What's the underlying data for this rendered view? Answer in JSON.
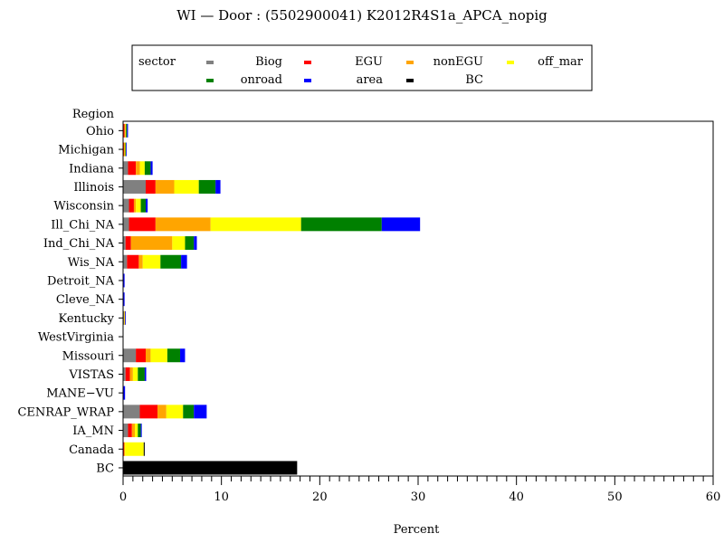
{
  "chart_data": {
    "type": "bar",
    "orientation": "horizontal",
    "stacked": true,
    "title": "WI — Door : (5502900041) K2012R4S1a_APCA_nopig",
    "xlabel": "Percent",
    "ylabel": "Region",
    "xlim": [
      0,
      60
    ],
    "x_ticks": [
      "0",
      "10",
      "20",
      "30",
      "40",
      "50",
      "60"
    ],
    "grid": false,
    "legend_title": "sector",
    "legend_position": "top",
    "categories": [
      "Ohio",
      "Michigan",
      "Indiana",
      "Illinois",
      "Wisconsin",
      "Ill_Chi_NA",
      "Ind_Chi_NA",
      "Wis_NA",
      "Detroit_NA",
      "Cleve_NA",
      "Kentucky",
      "WestVirginia",
      "Missouri",
      "VISTAS",
      "MANE−VU",
      "CENRAP_WRAP",
      "IA_MN",
      "Canada",
      "BC"
    ],
    "series": [
      {
        "name": "Biog",
        "color": "#808080",
        "values": [
          0.05,
          0.03,
          0.5,
          2.3,
          0.6,
          0.6,
          0.25,
          0.4,
          0,
          0,
          0.1,
          0,
          1.3,
          0.25,
          0,
          1.7,
          0.5,
          0.05,
          0
        ]
      },
      {
        "name": "EGU",
        "color": "#ff0000",
        "values": [
          0.1,
          0.05,
          0.8,
          1.0,
          0.5,
          2.7,
          0.55,
          1.2,
          0,
          0,
          0,
          0,
          1.0,
          0.45,
          0,
          1.8,
          0.4,
          0.05,
          0
        ]
      },
      {
        "name": "nonEGU",
        "color": "#ffa500",
        "values": [
          0.1,
          0.1,
          0.4,
          1.9,
          0.2,
          5.6,
          4.2,
          0.4,
          0,
          0,
          0.05,
          0,
          0.5,
          0.3,
          0,
          0.9,
          0.3,
          0.1,
          0
        ]
      },
      {
        "name": "off_mar",
        "color": "#ffff00",
        "values": [
          0.05,
          0.05,
          0.5,
          2.5,
          0.5,
          9.2,
          1.3,
          1.8,
          0,
          0,
          0.05,
          0,
          1.7,
          0.5,
          0,
          1.7,
          0.3,
          1.9,
          0
        ]
      },
      {
        "name": "onroad",
        "color": "#008000",
        "values": [
          0.1,
          0.05,
          0.6,
          1.7,
          0.5,
          8.2,
          0.9,
          2.1,
          0,
          0,
          0,
          0,
          1.3,
          0.7,
          0,
          1.1,
          0.3,
          0,
          0
        ]
      },
      {
        "name": "area",
        "color": "#0000ff",
        "values": [
          0.1,
          0.02,
          0.2,
          0.5,
          0.2,
          3.9,
          0.3,
          0.6,
          0.15,
          0.15,
          0.05,
          0,
          0.5,
          0.15,
          0.2,
          1.3,
          0.1,
          0,
          0
        ]
      },
      {
        "name": "BC",
        "color": "#000000",
        "values": [
          0,
          0,
          0,
          0,
          0,
          0,
          0,
          0,
          0,
          0,
          0,
          0,
          0,
          0,
          0,
          0,
          0,
          0.1,
          17.7
        ]
      }
    ]
  }
}
